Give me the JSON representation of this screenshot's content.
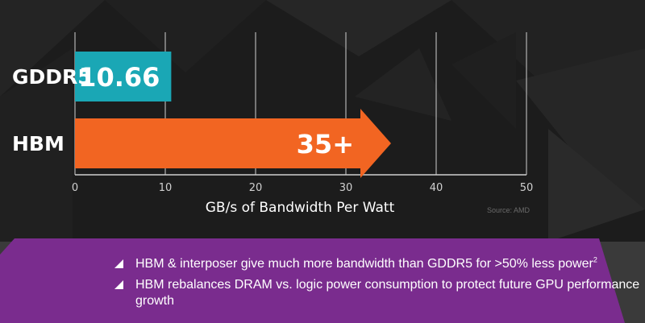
{
  "colors": {
    "background": "#1c1c1c",
    "gddr5": "#1aa7b5",
    "hbm": "#f26522",
    "band": "#7a2c8e",
    "grid": "#cfcfcf"
  },
  "chart_data": {
    "type": "bar",
    "orientation": "horizontal",
    "categories": [
      "GDDR5",
      "HBM"
    ],
    "values": [
      10.66,
      35
    ],
    "value_labels": [
      "10.66",
      "35+"
    ],
    "xlabel": "GB/s of Bandwidth Per Watt",
    "xlim": [
      0,
      50
    ],
    "xticks": [
      "0",
      "10",
      "20",
      "30",
      "40",
      "50"
    ],
    "grid": true,
    "hbm_bar_shape": "arrow"
  },
  "source": "Source: AMD",
  "bullets": [
    {
      "text": "HBM & interposer give much more bandwidth than GDDR5 for >50% less power",
      "sup": "2"
    },
    {
      "text": "HBM rebalances DRAM vs. logic power consumption to protect future GPU performance growth",
      "sup": ""
    }
  ]
}
